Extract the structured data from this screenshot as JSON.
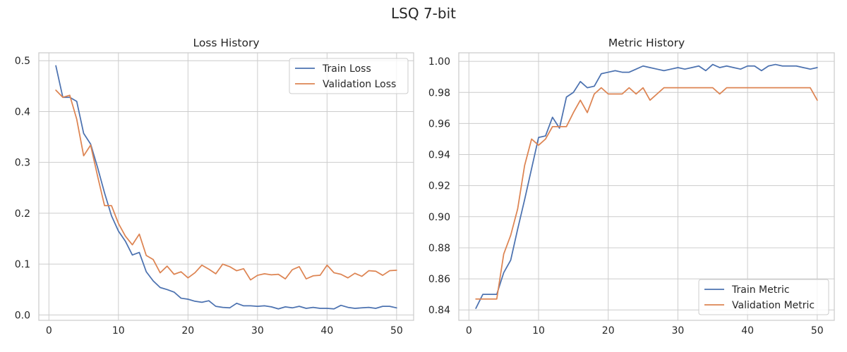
{
  "title": "LSQ 7-bit",
  "chart_data": [
    {
      "type": "line",
      "title": "Loss History",
      "xlabel": "",
      "ylabel": "",
      "xlim": [
        -1.45,
        52.45
      ],
      "ylim": [
        -0.0105,
        0.5155
      ],
      "xticks": [
        0,
        10,
        20,
        30,
        40,
        50
      ],
      "yticks": [
        0.0,
        0.1,
        0.2,
        0.3,
        0.4,
        0.5
      ],
      "ytick_decimals": 1,
      "grid": true,
      "legend": "top-right",
      "x": [
        1,
        2,
        3,
        4,
        5,
        6,
        7,
        8,
        9,
        10,
        11,
        12,
        13,
        14,
        15,
        16,
        17,
        18,
        19,
        20,
        21,
        22,
        23,
        24,
        25,
        26,
        27,
        28,
        29,
        30,
        31,
        32,
        33,
        34,
        35,
        36,
        37,
        38,
        39,
        40,
        41,
        42,
        43,
        44,
        45,
        46,
        47,
        48,
        49,
        50
      ],
      "series": [
        {
          "name": "Train Loss",
          "color": "#4c72b0",
          "values": [
            0.49,
            0.428,
            0.428,
            0.42,
            0.357,
            0.336,
            0.29,
            0.24,
            0.195,
            0.165,
            0.145,
            0.118,
            0.123,
            0.085,
            0.067,
            0.054,
            0.05,
            0.045,
            0.033,
            0.031,
            0.027,
            0.025,
            0.028,
            0.017,
            0.015,
            0.014,
            0.023,
            0.018,
            0.018,
            0.017,
            0.018,
            0.016,
            0.012,
            0.016,
            0.014,
            0.017,
            0.013,
            0.015,
            0.013,
            0.013,
            0.012,
            0.019,
            0.015,
            0.013,
            0.014,
            0.015,
            0.013,
            0.017,
            0.017,
            0.014
          ]
        },
        {
          "name": "Validation Loss",
          "color": "#dd8452",
          "values": [
            0.442,
            0.428,
            0.432,
            0.385,
            0.313,
            0.334,
            0.273,
            0.215,
            0.215,
            0.18,
            0.155,
            0.138,
            0.159,
            0.117,
            0.109,
            0.083,
            0.096,
            0.08,
            0.085,
            0.073,
            0.083,
            0.098,
            0.09,
            0.081,
            0.1,
            0.095,
            0.087,
            0.091,
            0.069,
            0.078,
            0.081,
            0.079,
            0.08,
            0.071,
            0.089,
            0.095,
            0.071,
            0.077,
            0.078,
            0.098,
            0.083,
            0.08,
            0.073,
            0.082,
            0.076,
            0.087,
            0.086,
            0.078,
            0.087,
            0.088
          ]
        }
      ]
    },
    {
      "type": "line",
      "title": "Metric History",
      "xlabel": "",
      "ylabel": "",
      "xlim": [
        -1.45,
        52.45
      ],
      "ylim": [
        0.8333,
        1.0055
      ],
      "xticks": [
        0,
        10,
        20,
        30,
        40,
        50
      ],
      "yticks": [
        0.84,
        0.86,
        0.88,
        0.9,
        0.92,
        0.94,
        0.96,
        0.98,
        1.0
      ],
      "ytick_decimals": 2,
      "grid": true,
      "legend": "bottom-right",
      "x": [
        1,
        2,
        3,
        4,
        5,
        6,
        7,
        8,
        9,
        10,
        11,
        12,
        13,
        14,
        15,
        16,
        17,
        18,
        19,
        20,
        21,
        22,
        23,
        24,
        25,
        26,
        27,
        28,
        29,
        30,
        31,
        32,
        33,
        34,
        35,
        36,
        37,
        38,
        39,
        40,
        41,
        42,
        43,
        44,
        45,
        46,
        47,
        48,
        49,
        50
      ],
      "series": [
        {
          "name": "Train Metric",
          "color": "#4c72b0",
          "values": [
            0.841,
            0.85,
            0.85,
            0.85,
            0.864,
            0.872,
            0.892,
            0.911,
            0.931,
            0.951,
            0.952,
            0.964,
            0.957,
            0.977,
            0.98,
            0.987,
            0.983,
            0.984,
            0.992,
            0.993,
            0.994,
            0.993,
            0.993,
            0.995,
            0.997,
            0.996,
            0.995,
            0.994,
            0.995,
            0.996,
            0.995,
            0.996,
            0.997,
            0.994,
            0.998,
            0.996,
            0.997,
            0.996,
            0.995,
            0.997,
            0.997,
            0.994,
            0.997,
            0.998,
            0.997,
            0.997,
            0.997,
            0.996,
            0.995,
            0.996
          ]
        },
        {
          "name": "Validation Metric",
          "color": "#dd8452",
          "values": [
            0.847,
            0.847,
            0.847,
            0.847,
            0.876,
            0.888,
            0.905,
            0.933,
            0.95,
            0.946,
            0.95,
            0.958,
            0.958,
            0.958,
            0.967,
            0.975,
            0.967,
            0.979,
            0.983,
            0.979,
            0.979,
            0.979,
            0.983,
            0.979,
            0.983,
            0.975,
            0.979,
            0.983,
            0.983,
            0.983,
            0.983,
            0.983,
            0.983,
            0.983,
            0.983,
            0.979,
            0.983,
            0.983,
            0.983,
            0.983,
            0.983,
            0.983,
            0.983,
            0.983,
            0.983,
            0.983,
            0.983,
            0.983,
            0.983,
            0.975
          ]
        }
      ]
    }
  ]
}
